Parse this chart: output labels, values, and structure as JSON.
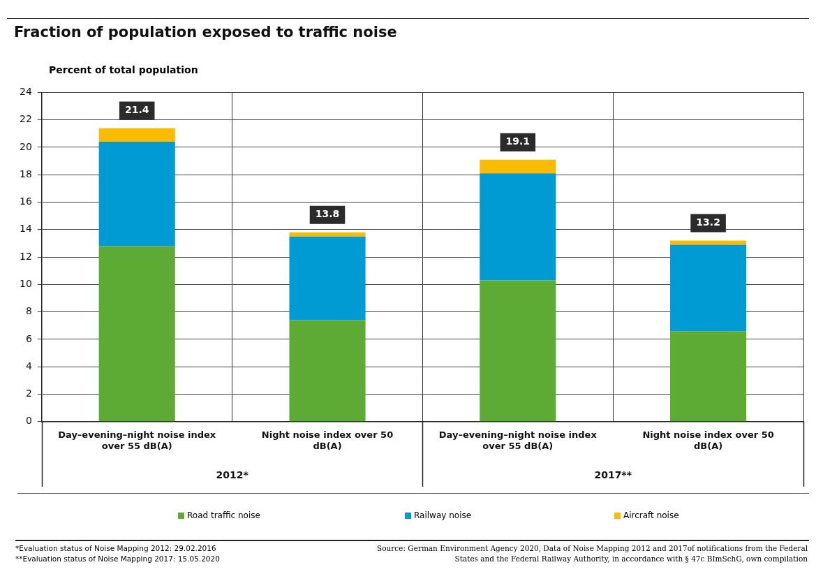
{
  "chart_data": {
    "type": "bar",
    "title": "Fraction of population exposed to traffic noise",
    "ylabel": "Percent of total population",
    "categories": [
      "Day–evening–night noise index over 55 dB(A)",
      "Night noise index over 50 dB(A)",
      "Day–evening–night noise index over 55 dB(A)",
      "Night noise index over 50 dB(A)"
    ],
    "series": [
      {
        "name": "Road traffic noise",
        "color": "#5dab35",
        "values": [
          12.8,
          7.4,
          10.3,
          6.6
        ]
      },
      {
        "name": "Railway noise",
        "color": "#009bd3",
        "values": [
          7.6,
          6.1,
          7.8,
          6.3
        ]
      },
      {
        "name": "Aircraft noise",
        "color": "#fbbb00",
        "values": [
          1.0,
          0.3,
          1.0,
          0.3
        ]
      }
    ],
    "stacked": true,
    "totals": [
      "21.4",
      "13.8",
      "19.1",
      "13.2"
    ],
    "ylim": [
      0,
      24
    ],
    "yticks": [
      0,
      2,
      4,
      6,
      8,
      10,
      12,
      14,
      16,
      18,
      20,
      22,
      24
    ],
    "grid": true,
    "legend": "bottom",
    "annotations": [
      "2012*",
      "2017**",
      "*Evaluation status of Noise Mapping 2012: 29.02.2016",
      "**Evaluation status of Noise Mapping 2017: 15.05.2020",
      "Source: German Environment Agency 2020, Data of Noise Mapping 2012 and 2017of notifications from the Federal States and the Federal Railway Authority, in accordance with § 47c BImSchG, own compilation"
    ]
  }
}
